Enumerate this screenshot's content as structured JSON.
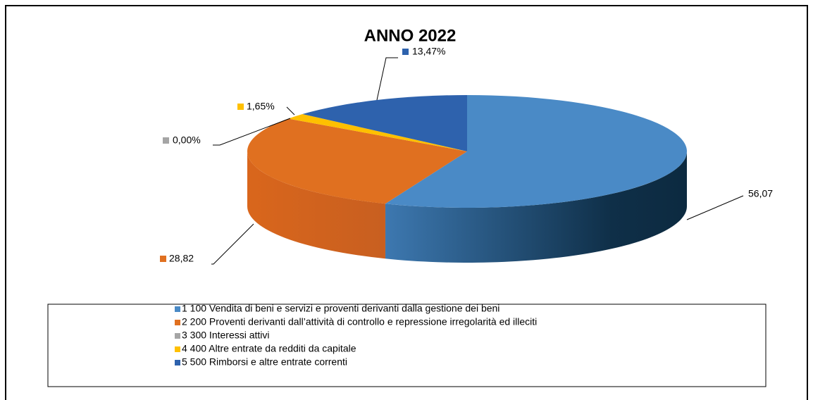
{
  "chart_data": {
    "type": "pie3d",
    "title": "ANNO 2022",
    "categories": [
      "1 100 Vendita di beni e servizi e proventi derivanti dalla gestione dei beni",
      "2 200 Proventi derivanti dall’attività di controllo e repressione irregolarità ed illeciti",
      "3 300 Interessi attivi",
      "4 400 Altre entrate da redditi da capitale",
      "5 500 Rimborsi e altre entrate correnti"
    ],
    "values": [
      56.07,
      28.82,
      0,
      1.65,
      13.47
    ],
    "value_labels": [
      "56,07",
      "28,82",
      "0,00%",
      "1,65%",
      "13,47%"
    ],
    "colors": [
      "#4a8ac6",
      "#e07020",
      "#a5a5a5",
      "#ffc000",
      "#2e62ad"
    ]
  }
}
